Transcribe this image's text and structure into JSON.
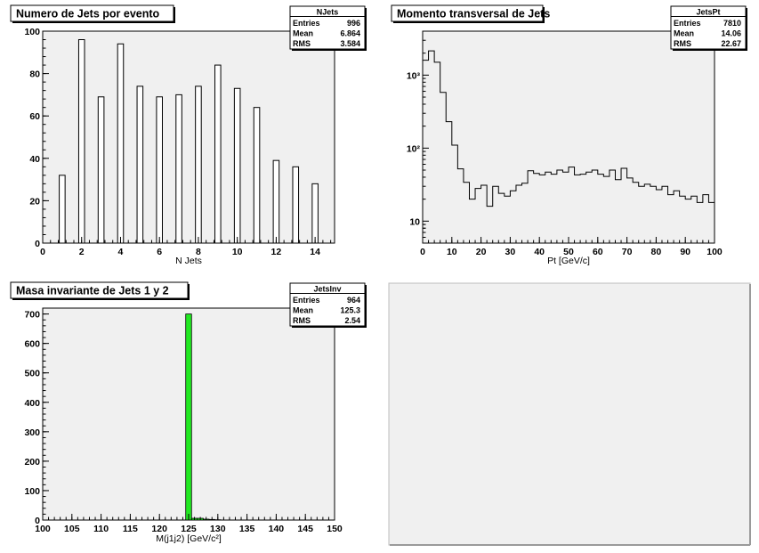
{
  "chart_data": [
    {
      "type": "bar",
      "title": "Numero de Jets por evento",
      "xlabel": "N Jets",
      "ylabel": "",
      "xlim": [
        0,
        15
      ],
      "ylim": [
        0,
        100
      ],
      "xticks": [
        0,
        2,
        4,
        6,
        8,
        10,
        12,
        14
      ],
      "yticks": [
        0,
        20,
        40,
        60,
        80,
        100
      ],
      "x": [
        1,
        2,
        3,
        4,
        5,
        6,
        7,
        8,
        9,
        10,
        11,
        12,
        13,
        14
      ],
      "values": [
        32,
        96,
        69,
        94,
        74,
        69,
        70,
        74,
        84,
        73,
        64,
        39,
        36,
        28
      ],
      "bar_width": 0.3,
      "fill": "#ffffff",
      "stats": {
        "name": "NJets",
        "rows": [
          [
            "Entries",
            "996"
          ],
          [
            "Mean",
            "6.864"
          ],
          [
            "RMS",
            "3.584"
          ]
        ]
      }
    },
    {
      "type": "line",
      "title": "Momento transversal de Jets",
      "xlabel": "Pt [GeV/c]",
      "ylabel": "",
      "xlim": [
        0,
        100
      ],
      "ylim": [
        5,
        4000
      ],
      "ylog": true,
      "xticks": [
        0,
        10,
        20,
        30,
        40,
        50,
        60,
        70,
        80,
        90,
        100
      ],
      "ytick_labels": [
        {
          "v": 10,
          "label": "10"
        },
        {
          "v": 100,
          "label": "10²"
        },
        {
          "v": 1000,
          "label": "10³"
        }
      ],
      "bin_width": 2,
      "values": [
        1600,
        2150,
        1500,
        580,
        230,
        110,
        52,
        34,
        20,
        28,
        31,
        16,
        30,
        24,
        22,
        26,
        31,
        33,
        49,
        45,
        43,
        47,
        44,
        50,
        47,
        55,
        43,
        44,
        47,
        50,
        44,
        41,
        50,
        37,
        53,
        39,
        34,
        30,
        32,
        30,
        27,
        30,
        23,
        26,
        22,
        20,
        22,
        18,
        23,
        18
      ],
      "stats": {
        "name": "JetsPt",
        "rows": [
          [
            "Entries",
            "7810"
          ],
          [
            "Mean",
            "14.06"
          ],
          [
            "RMS",
            "22.67"
          ]
        ]
      }
    },
    {
      "type": "bar",
      "title": "Masa invariante de Jets 1 y 2",
      "xlabel": "M(j1j2) [GeV/c²]",
      "ylabel": "",
      "xlim": [
        100,
        150
      ],
      "ylim": [
        0,
        720
      ],
      "xticks": [
        100,
        105,
        110,
        115,
        120,
        125,
        130,
        135,
        140,
        145,
        150
      ],
      "yticks": [
        0,
        100,
        200,
        300,
        400,
        500,
        600,
        700
      ],
      "bins": [
        {
          "x0": 124.5,
          "x1": 125.5,
          "v": 700
        },
        {
          "x0": 125.5,
          "x1": 126.5,
          "v": 6
        },
        {
          "x0": 126.5,
          "x1": 127.5,
          "v": 6
        },
        {
          "x0": 127.5,
          "x1": 128.5,
          "v": 3
        },
        {
          "x0": 128.5,
          "x1": 129.5,
          "v": 2
        },
        {
          "x0": 129.5,
          "x1": 130.5,
          "v": 1
        }
      ],
      "fill": "#22e822",
      "stats": {
        "name": "JetsInv",
        "rows": [
          [
            "Entries",
            "964"
          ],
          [
            "Mean",
            "125.3"
          ],
          [
            "RMS",
            "2.54"
          ]
        ]
      }
    }
  ]
}
